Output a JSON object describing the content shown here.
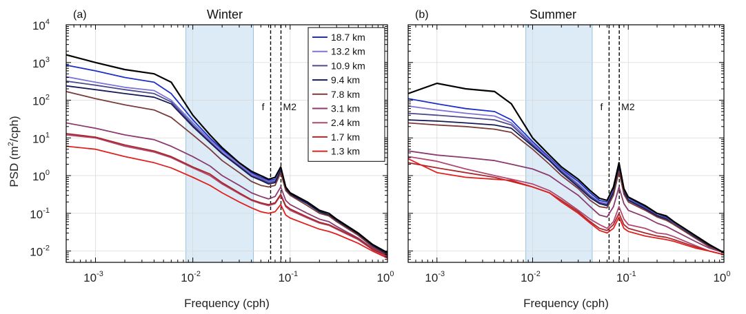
{
  "figure": {
    "ylabel_prefix": "PSD (m",
    "ylabel_exp": "2",
    "ylabel_suffix": "/cph)"
  },
  "chart_data": [
    {
      "type": "line",
      "panel": "(a)",
      "title": "Winter",
      "xlabel": "Frequency (cph)",
      "xscale": "log",
      "yscale": "log",
      "xlim": [
        0.0005,
        1
      ],
      "ylim": [
        0.005,
        10000
      ],
      "grid": true,
      "legend_placement": "top-right",
      "shaded_band": {
        "x": [
          0.0085,
          0.042
        ],
        "color": "#dcebf6"
      },
      "vlines": [
        {
          "x": 0.063,
          "label": "f"
        },
        {
          "x": 0.0805,
          "label": "M2"
        }
      ],
      "xticks": [
        {
          "base": "10",
          "exp": "-3",
          "v": 0.001
        },
        {
          "base": "10",
          "exp": "-2",
          "v": 0.01
        },
        {
          "base": "10",
          "exp": "-1",
          "v": 0.1
        },
        {
          "base": "10",
          "exp": "0",
          "v": 1
        }
      ],
      "yticks": [
        {
          "base": "10",
          "exp": "-2",
          "v": 0.01
        },
        {
          "base": "10",
          "exp": "-1",
          "v": 0.1
        },
        {
          "base": "10",
          "exp": "0",
          "v": 1
        },
        {
          "base": "10",
          "exp": "1",
          "v": 10
        },
        {
          "base": "10",
          "exp": "2",
          "v": 100
        },
        {
          "base": "10",
          "exp": "3",
          "v": 1000
        },
        {
          "base": "10",
          "exp": "4",
          "v": 10000
        }
      ],
      "x": [
        0.0005,
        0.001,
        0.002,
        0.004,
        0.006,
        0.01,
        0.015,
        0.02,
        0.03,
        0.04,
        0.05,
        0.06,
        0.07,
        0.08,
        0.09,
        0.1,
        0.15,
        0.2,
        0.25,
        0.3,
        0.5,
        0.7,
        1.0
      ],
      "series": [
        {
          "name": "18.7 km",
          "color": "#1b2fc8",
          "values": [
            850,
            600,
            400,
            300,
            150,
            30,
            10,
            5,
            2,
            1.2,
            0.9,
            0.75,
            0.8,
            1.6,
            0.5,
            0.35,
            0.2,
            0.12,
            0.1,
            0.07,
            0.03,
            0.015,
            0.009
          ]
        },
        {
          "name": "13.2 km",
          "color": "#7b73d6",
          "values": [
            420,
            300,
            220,
            180,
            100,
            25,
            9,
            4.5,
            2,
            1.1,
            0.85,
            0.7,
            0.75,
            1.5,
            0.45,
            0.33,
            0.18,
            0.11,
            0.09,
            0.065,
            0.028,
            0.014,
            0.008
          ]
        },
        {
          "name": "10.9 km",
          "color": "#4c4a8c",
          "values": [
            320,
            250,
            190,
            150,
            90,
            22,
            8,
            4,
            1.8,
            1.0,
            0.8,
            0.65,
            0.7,
            1.4,
            0.45,
            0.32,
            0.18,
            0.11,
            0.09,
            0.065,
            0.028,
            0.014,
            0.008
          ]
        },
        {
          "name": "9.4 km",
          "color": "#151a55",
          "values": [
            240,
            190,
            150,
            120,
            80,
            20,
            7.5,
            3.8,
            1.7,
            0.95,
            0.75,
            0.6,
            0.65,
            1.4,
            0.45,
            0.32,
            0.18,
            0.11,
            0.09,
            0.065,
            0.028,
            0.014,
            0.008
          ]
        },
        {
          "name": "7.8 km",
          "color": "#7a3a3a",
          "values": [
            170,
            110,
            75,
            55,
            35,
            12,
            5,
            2.5,
            1.2,
            0.7,
            0.55,
            0.5,
            0.55,
            1.2,
            0.4,
            0.3,
            0.16,
            0.1,
            0.085,
            0.06,
            0.026,
            0.013,
            0.0075
          ]
        },
        {
          "name": "3.1 km",
          "color": "#8a3a6e",
          "values": [
            25,
            18,
            12,
            9,
            6,
            3.2,
            1.8,
            1.0,
            0.55,
            0.35,
            0.28,
            0.24,
            0.28,
            0.5,
            0.22,
            0.17,
            0.1,
            0.07,
            0.06,
            0.045,
            0.022,
            0.012,
            0.007
          ]
        },
        {
          "name": "2.4 km",
          "color": "#b0476f",
          "values": [
            12,
            10,
            6,
            4.2,
            3,
            1.6,
            1.0,
            0.6,
            0.33,
            0.22,
            0.18,
            0.16,
            0.18,
            0.3,
            0.15,
            0.12,
            0.075,
            0.055,
            0.048,
            0.038,
            0.02,
            0.011,
            0.007
          ]
        },
        {
          "name": "1.7 km",
          "color": "#a8282e",
          "values": [
            13,
            10.5,
            6.5,
            4.5,
            3.2,
            1.7,
            1.1,
            0.65,
            0.35,
            0.23,
            0.19,
            0.17,
            0.19,
            0.32,
            0.16,
            0.13,
            0.08,
            0.058,
            0.05,
            0.04,
            0.021,
            0.011,
            0.0075
          ]
        },
        {
          "name": "1.3 km",
          "color": "#e0201e",
          "values": [
            6,
            5,
            3.2,
            2.2,
            1.6,
            0.9,
            0.55,
            0.35,
            0.2,
            0.14,
            0.11,
            0.1,
            0.11,
            0.17,
            0.09,
            0.075,
            0.05,
            0.038,
            0.033,
            0.028,
            0.016,
            0.01,
            0.0065
          ]
        },
        {
          "name": "",
          "color": "#000000",
          "values": [
            1600,
            1000,
            650,
            500,
            300,
            40,
            12,
            5.5,
            2.2,
            1.3,
            1.0,
            0.8,
            0.9,
            1.7,
            0.5,
            0.35,
            0.2,
            0.12,
            0.1,
            0.07,
            0.03,
            0.015,
            0.009
          ]
        }
      ]
    },
    {
      "type": "line",
      "panel": "(b)",
      "title": "Summer",
      "xlabel": "Frequency (cph)",
      "xscale": "log",
      "yscale": "log",
      "xlim": [
        0.0005,
        1
      ],
      "ylim": [
        0.005,
        10000
      ],
      "grid": true,
      "shaded_band": {
        "x": [
          0.0085,
          0.042
        ],
        "color": "#dcebf6"
      },
      "vlines": [
        {
          "x": 0.063,
          "label": "f"
        },
        {
          "x": 0.0805,
          "label": "M2"
        }
      ],
      "xticks": [
        {
          "base": "10",
          "exp": "-3",
          "v": 0.001
        },
        {
          "base": "10",
          "exp": "-2",
          "v": 0.01
        },
        {
          "base": "10",
          "exp": "-1",
          "v": 0.1
        },
        {
          "base": "10",
          "exp": "0",
          "v": 1
        }
      ],
      "x": [
        0.0005,
        0.001,
        0.002,
        0.004,
        0.006,
        0.01,
        0.015,
        0.02,
        0.03,
        0.04,
        0.05,
        0.06,
        0.07,
        0.08,
        0.09,
        0.1,
        0.15,
        0.2,
        0.25,
        0.3,
        0.5,
        0.7,
        1.0
      ],
      "series": [
        {
          "name": "18.7 km",
          "color": "#1b2fc8",
          "values": [
            110,
            80,
            60,
            50,
            30,
            8,
            3,
            1.5,
            0.7,
            0.35,
            0.22,
            0.2,
            0.45,
            2.0,
            0.4,
            0.25,
            0.15,
            0.1,
            0.08,
            0.06,
            0.025,
            0.015,
            0.009
          ]
        },
        {
          "name": "13.2 km",
          "color": "#7b73d6",
          "values": [
            70,
            55,
            45,
            38,
            25,
            7,
            2.8,
            1.4,
            0.6,
            0.3,
            0.2,
            0.18,
            0.4,
            1.8,
            0.38,
            0.24,
            0.14,
            0.09,
            0.075,
            0.055,
            0.024,
            0.014,
            0.009
          ]
        },
        {
          "name": "10.9 km",
          "color": "#4c4a8c",
          "values": [
            45,
            40,
            35,
            30,
            22,
            6.5,
            2.6,
            1.3,
            0.55,
            0.28,
            0.19,
            0.17,
            0.38,
            1.7,
            0.37,
            0.23,
            0.14,
            0.09,
            0.075,
            0.055,
            0.024,
            0.014,
            0.009
          ]
        },
        {
          "name": "9.4 km",
          "color": "#151a55",
          "values": [
            30,
            28,
            25,
            22,
            18,
            6,
            2.5,
            1.2,
            0.5,
            0.26,
            0.18,
            0.16,
            0.36,
            1.6,
            0.36,
            0.22,
            0.13,
            0.085,
            0.07,
            0.05,
            0.023,
            0.014,
            0.009
          ]
        },
        {
          "name": "7.8 km",
          "color": "#7a3a3a",
          "values": [
            25,
            22,
            20,
            17,
            14,
            5,
            2,
            1.0,
            0.45,
            0.22,
            0.15,
            0.14,
            0.3,
            1.3,
            0.32,
            0.2,
            0.12,
            0.08,
            0.065,
            0.05,
            0.022,
            0.013,
            0.009
          ]
        },
        {
          "name": "3.1 km",
          "color": "#8a3a6e",
          "values": [
            4.5,
            3.5,
            3.0,
            2.5,
            2.0,
            1.5,
            1.0,
            0.6,
            0.3,
            0.15,
            0.09,
            0.08,
            0.15,
            0.5,
            0.18,
            0.12,
            0.08,
            0.055,
            0.045,
            0.035,
            0.018,
            0.012,
            0.009
          ]
        },
        {
          "name": "2.4 km",
          "color": "#b0476f",
          "values": [
            3.2,
            2.4,
            1.5,
            1.0,
            0.8,
            0.6,
            0.4,
            0.25,
            0.12,
            0.07,
            0.05,
            0.04,
            0.06,
            0.15,
            0.07,
            0.05,
            0.04,
            0.03,
            0.028,
            0.024,
            0.014,
            0.01,
            0.008
          ]
        },
        {
          "name": "1.7 km",
          "color": "#a8282e",
          "values": [
            2.2,
            1.6,
            1.2,
            0.9,
            0.7,
            0.5,
            0.35,
            0.22,
            0.11,
            0.06,
            0.04,
            0.035,
            0.05,
            0.1,
            0.05,
            0.04,
            0.03,
            0.025,
            0.023,
            0.02,
            0.013,
            0.01,
            0.008
          ]
        },
        {
          "name": "1.3 km",
          "color": "#e0201e",
          "values": [
            2.8,
            1.2,
            0.9,
            0.8,
            0.75,
            0.5,
            0.35,
            0.2,
            0.1,
            0.055,
            0.035,
            0.03,
            0.04,
            0.08,
            0.04,
            0.033,
            0.025,
            0.022,
            0.02,
            0.018,
            0.012,
            0.01,
            0.008
          ]
        },
        {
          "name": "",
          "color": "#000000",
          "values": [
            150,
            280,
            200,
            170,
            80,
            10,
            3.5,
            1.7,
            0.8,
            0.4,
            0.25,
            0.22,
            0.5,
            2.2,
            0.45,
            0.27,
            0.16,
            0.1,
            0.085,
            0.06,
            0.026,
            0.015,
            0.009
          ]
        }
      ]
    }
  ]
}
